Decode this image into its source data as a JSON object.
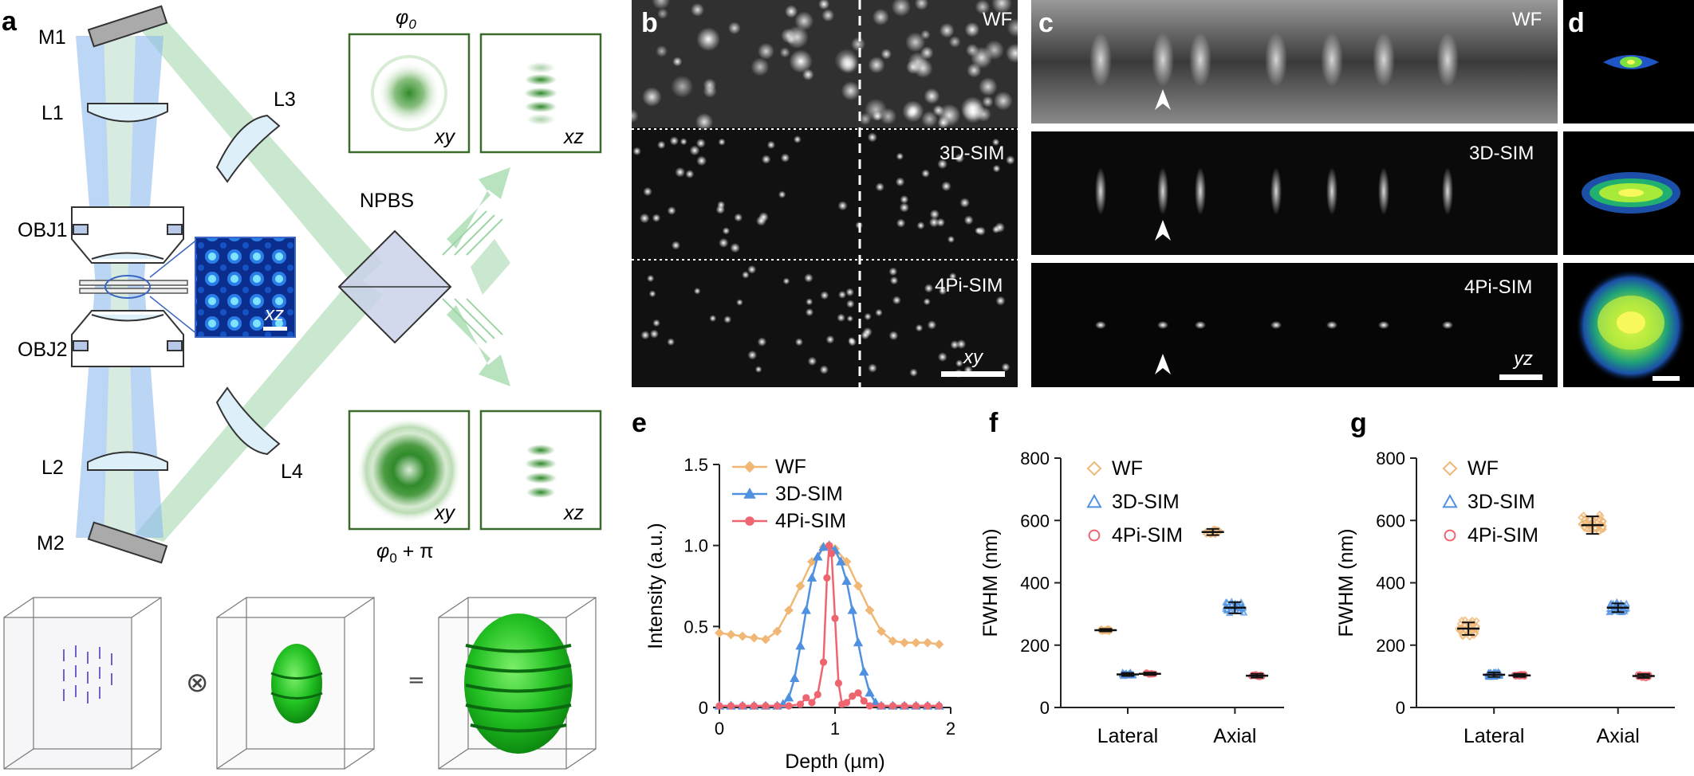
{
  "panels": {
    "a": "a",
    "b": "b",
    "c": "c",
    "d": "d",
    "e": "e",
    "f": "f",
    "g": "g"
  },
  "optics": {
    "M1": "M1",
    "M2": "M2",
    "L1": "L1",
    "L2": "L2",
    "L3": "L3",
    "L4": "L4",
    "OBJ1": "OBJ1",
    "OBJ2": "OBJ2",
    "NPBS": "NPBS",
    "phi0": "φ0",
    "phi0_sub": "0",
    "phi_pi": "φ0 + π",
    "xy": "xy",
    "xz": "xz",
    "inset_xz": "xz"
  },
  "convolution": {
    "otimes": "⊗",
    "equals": "="
  },
  "images": {
    "b": {
      "rows": [
        "WF",
        "3D-SIM",
        "4Pi-SIM"
      ],
      "plane": "xy"
    },
    "c": {
      "rows": [
        "WF",
        "3D-SIM",
        "4Pi-SIM"
      ],
      "plane": "yz"
    }
  },
  "colors": {
    "WF": "#f0b775",
    "3D-SIM": "#4f91e0",
    "4Pi-SIM": "#ee6570",
    "green": "#9fd6a8",
    "blue": "#8fbaf0",
    "frame": "#3b6b2a"
  },
  "chart_data": [
    {
      "type": "line",
      "panel": "e",
      "xlabel": "Depth (µm)",
      "ylabel": "Intensity (a.u.)",
      "xlim": [
        0,
        2
      ],
      "ylim": [
        0,
        1.5
      ],
      "xticks": [
        0,
        1,
        2
      ],
      "yticks": [
        0,
        0.5,
        1.0,
        1.5
      ],
      "ytick_labels": [
        "0",
        "0.5",
        "1.0",
        "1.5"
      ],
      "legend": "top-left",
      "series": [
        {
          "name": "WF",
          "color": "#f0b775",
          "marker": "diamond",
          "x": [
            0,
            0.1,
            0.2,
            0.3,
            0.4,
            0.5,
            0.6,
            0.7,
            0.8,
            0.9,
            1.0,
            1.1,
            1.2,
            1.3,
            1.4,
            1.5,
            1.6,
            1.7,
            1.8,
            1.9
          ],
          "y": [
            0.46,
            0.45,
            0.44,
            0.43,
            0.42,
            0.47,
            0.6,
            0.75,
            0.9,
            0.99,
            0.98,
            0.9,
            0.75,
            0.6,
            0.47,
            0.41,
            0.4,
            0.4,
            0.4,
            0.39
          ]
        },
        {
          "name": "3D-SIM",
          "color": "#4f91e0",
          "marker": "triangle",
          "x": [
            0,
            0.1,
            0.2,
            0.3,
            0.4,
            0.5,
            0.55,
            0.6,
            0.65,
            0.7,
            0.75,
            0.8,
            0.85,
            0.9,
            0.95,
            1.0,
            1.05,
            1.1,
            1.15,
            1.2,
            1.25,
            1.3,
            1.35,
            1.4,
            1.5,
            1.6,
            1.7,
            1.8,
            1.9
          ],
          "y": [
            0.01,
            0.01,
            0.01,
            0.01,
            0.01,
            0.01,
            0.02,
            0.06,
            0.18,
            0.38,
            0.6,
            0.8,
            0.93,
            0.99,
            1.0,
            0.97,
            0.9,
            0.78,
            0.6,
            0.4,
            0.22,
            0.09,
            0.03,
            0.01,
            0.01,
            0.01,
            0.01,
            0.01,
            0.01
          ]
        },
        {
          "name": "4Pi-SIM",
          "color": "#ee6570",
          "marker": "circle",
          "x": [
            0,
            0.1,
            0.2,
            0.3,
            0.4,
            0.5,
            0.6,
            0.7,
            0.75,
            0.8,
            0.85,
            0.9,
            0.93,
            0.95,
            0.97,
            1.0,
            1.03,
            1.06,
            1.1,
            1.15,
            1.2,
            1.25,
            1.3,
            1.4,
            1.5,
            1.6,
            1.7,
            1.8,
            1.9
          ],
          "y": [
            0.01,
            0.01,
            0.01,
            0.01,
            0.01,
            0.01,
            0.01,
            0.02,
            0.06,
            0.03,
            0.08,
            0.28,
            0.8,
            1.0,
            0.95,
            0.55,
            0.15,
            0.02,
            0.03,
            0.07,
            0.09,
            0.04,
            0.01,
            0.01,
            0.01,
            0.01,
            0.01,
            0.01,
            0.01
          ]
        }
      ]
    },
    {
      "type": "scatter",
      "panel": "f",
      "ylabel": "FWHM (nm)",
      "categories": [
        "Lateral",
        "Axial"
      ],
      "ylim": [
        0,
        800
      ],
      "yticks": [
        0,
        200,
        400,
        600,
        800
      ],
      "legend": "top-left",
      "series": [
        {
          "name": "WF",
          "color": "#f0b775",
          "marker": "diamond",
          "values": [
            248,
            563
          ],
          "sd": [
            4,
            10
          ],
          "n": 30
        },
        {
          "name": "3D-SIM",
          "color": "#4f91e0",
          "marker": "triangle",
          "values": [
            106,
            320
          ],
          "sd": [
            5,
            18
          ],
          "n": 30
        },
        {
          "name": "4Pi-SIM",
          "color": "#ee6570",
          "marker": "circle",
          "values": [
            108,
            102
          ],
          "sd": [
            4,
            6
          ],
          "n": 30
        }
      ]
    },
    {
      "type": "scatter",
      "panel": "g",
      "ylabel": "FWHM (nm)",
      "categories": [
        "Lateral",
        "Axial"
      ],
      "ylim": [
        0,
        800
      ],
      "yticks": [
        0,
        200,
        400,
        600,
        800
      ],
      "legend": "top-left",
      "series": [
        {
          "name": "WF",
          "color": "#f0b775",
          "marker": "diamond",
          "values": [
            253,
            585
          ],
          "sd": [
            20,
            28
          ],
          "n": 60
        },
        {
          "name": "3D-SIM",
          "color": "#4f91e0",
          "marker": "triangle",
          "values": [
            105,
            320
          ],
          "sd": [
            7,
            14
          ],
          "n": 60
        },
        {
          "name": "4Pi-SIM",
          "color": "#ee6570",
          "marker": "circle",
          "values": [
            103,
            101
          ],
          "sd": [
            5,
            6
          ],
          "n": 60
        }
      ]
    }
  ]
}
